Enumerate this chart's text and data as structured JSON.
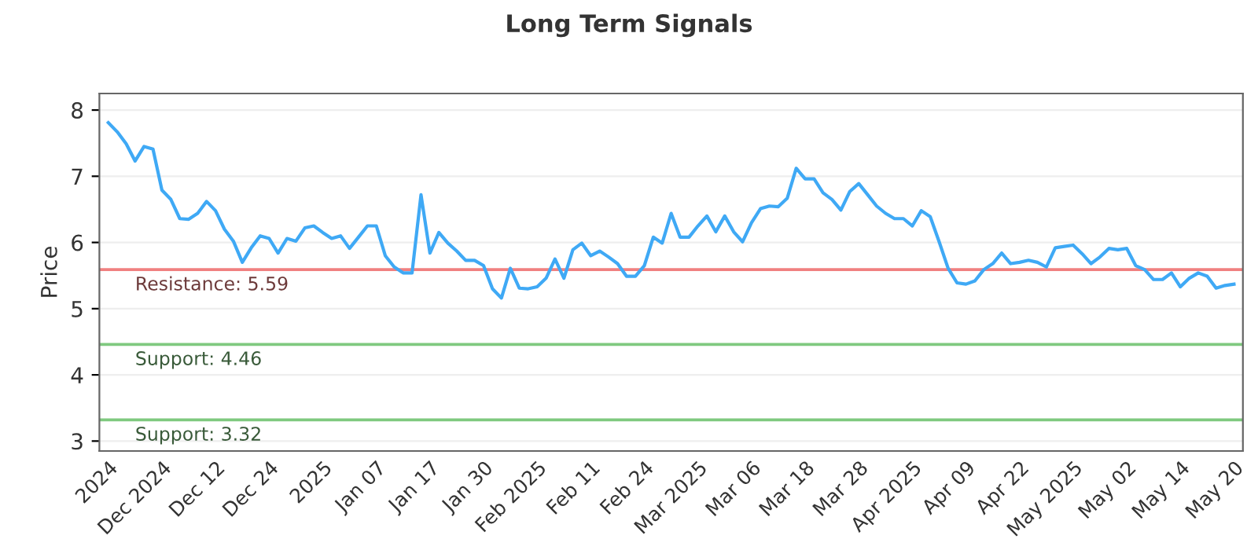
{
  "chart_data": {
    "type": "line",
    "title": "Long Term Signals",
    "ylabel": "Price",
    "categories": [
      "2024",
      null,
      null,
      null,
      null,
      null,
      "Dec 2024",
      null,
      null,
      null,
      null,
      null,
      "Dec 12",
      null,
      null,
      null,
      null,
      null,
      "Dec 24",
      null,
      null,
      null,
      null,
      null,
      "2025",
      null,
      null,
      null,
      null,
      null,
      "Jan 07",
      null,
      null,
      null,
      null,
      null,
      "Jan 17",
      null,
      null,
      null,
      null,
      null,
      "Jan 30",
      null,
      null,
      null,
      null,
      null,
      "Feb 2025",
      null,
      null,
      null,
      null,
      null,
      "Feb 11",
      null,
      null,
      null,
      null,
      null,
      "Feb 24",
      null,
      null,
      null,
      null,
      null,
      "Mar 2025",
      null,
      null,
      null,
      null,
      null,
      "Mar 06",
      null,
      null,
      null,
      null,
      null,
      "Mar 18",
      null,
      null,
      null,
      null,
      null,
      "Mar 28",
      null,
      null,
      null,
      null,
      null,
      "Apr 2025",
      null,
      null,
      null,
      null,
      null,
      "Apr 09",
      null,
      null,
      null,
      null,
      null,
      "Apr 22",
      null,
      null,
      null,
      null,
      null,
      "May 2025",
      null,
      null,
      null,
      null,
      null,
      "May 02",
      null,
      null,
      null,
      null,
      null,
      "May 14",
      null,
      null,
      null,
      null,
      null,
      "May 20"
    ],
    "series": [
      {
        "color": "#3fa9f5",
        "values": [
          7.81,
          7.67,
          7.49,
          7.23,
          7.45,
          7.41,
          6.79,
          6.65,
          6.36,
          6.35,
          6.44,
          6.62,
          6.48,
          6.2,
          6.02,
          5.7,
          5.92,
          6.1,
          6.06,
          5.84,
          6.06,
          6.02,
          6.22,
          6.25,
          6.15,
          6.06,
          6.1,
          5.91,
          6.08,
          6.25,
          6.25,
          5.8,
          5.63,
          5.54,
          5.54,
          6.72,
          5.84,
          6.15,
          5.99,
          5.87,
          5.73,
          5.73,
          5.65,
          5.3,
          5.16,
          5.61,
          5.31,
          5.3,
          5.33,
          5.46,
          5.75,
          5.46,
          5.89,
          5.99,
          5.8,
          5.87,
          5.78,
          5.68,
          5.49,
          5.49,
          5.65,
          6.08,
          5.99,
          6.44,
          6.08,
          6.08,
          6.25,
          6.4,
          6.16,
          6.4,
          6.16,
          6.01,
          6.3,
          6.51,
          6.55,
          6.54,
          6.67,
          7.12,
          6.96,
          6.96,
          6.75,
          6.65,
          6.49,
          6.77,
          6.89,
          6.72,
          6.55,
          6.44,
          6.36,
          6.36,
          6.25,
          6.48,
          6.39,
          6.01,
          5.61,
          5.39,
          5.37,
          5.42,
          5.59,
          5.68,
          5.84,
          5.68,
          5.7,
          5.73,
          5.7,
          5.63,
          5.92,
          5.94,
          5.96,
          5.83,
          5.68,
          5.78,
          5.91,
          5.89,
          5.91,
          5.65,
          5.59,
          5.44,
          5.44,
          5.54,
          5.33,
          5.46,
          5.54,
          5.49,
          5.31,
          5.35,
          5.37
        ]
      }
    ],
    "ylim": [
      2.85,
      8.25
    ],
    "yticks": [
      3,
      4,
      5,
      6,
      7,
      8
    ],
    "grid": "y",
    "ref_lines": [
      {
        "axis": "y",
        "value": 5.59,
        "label": "Resistance: 5.59",
        "color": "#f08080"
      },
      {
        "axis": "y",
        "value": 4.46,
        "label": "Support: 4.46",
        "color": "#7fc97f"
      },
      {
        "axis": "y",
        "value": 3.32,
        "label": "Support: 3.32",
        "color": "#7fc97f"
      }
    ]
  }
}
